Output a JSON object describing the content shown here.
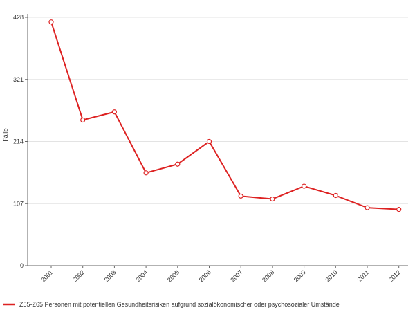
{
  "chart_data": {
    "type": "line",
    "ylabel": "Fälle",
    "xlabel": "",
    "ylim": [
      0,
      428
    ],
    "yticks": [
      0,
      107,
      214,
      321,
      428
    ],
    "grid": true,
    "legend_position": "bottom-left",
    "categories": [
      "2001",
      "2002",
      "2003",
      "2004",
      "2005",
      "2006",
      "2007",
      "2008",
      "2009",
      "2010",
      "2011",
      "2012"
    ],
    "series": [
      {
        "name": "Z55-Z65 Personen mit potentiellen Gesundheitsrisiken aufgrund sozialökonomischer oder psychosozialer Umstände",
        "color": "#dd2222",
        "values": [
          420,
          251,
          265,
          160,
          175,
          214,
          120,
          115,
          137,
          121,
          100,
          97
        ]
      }
    ]
  }
}
